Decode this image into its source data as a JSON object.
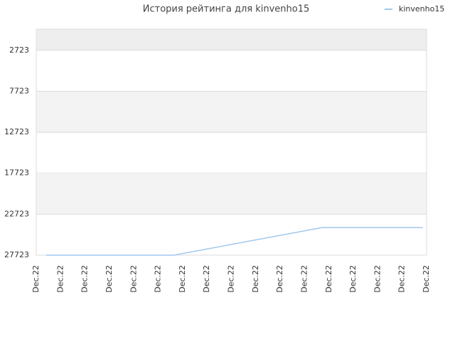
{
  "chart_data": {
    "type": "line",
    "title": "История рейтинга для kinvenho15",
    "categories": [
      "Dec.22",
      "Dec.22",
      "Dec.22",
      "Dec.22",
      "Dec.22",
      "Dec.22",
      "Dec.22",
      "Dec.22",
      "Dec.22",
      "Dec.22",
      "Dec.22",
      "Dec.22",
      "Dec.22",
      "Dec.22",
      "Dec.22",
      "Dec.22",
      "Dec.22"
    ],
    "series": [
      {
        "name": "kinvenho15",
        "color": "#9ec9ee",
        "x": [
          0.4,
          5.65,
          11.7,
          15.85
        ],
        "values": [
          27723,
          27723,
          24361,
          24361
        ]
      }
    ],
    "ylim": [
      27723,
      137
    ],
    "yticks": [
      2723,
      7723,
      12723,
      17723,
      22723,
      27723
    ],
    "grid": true,
    "legend": "top-right"
  }
}
